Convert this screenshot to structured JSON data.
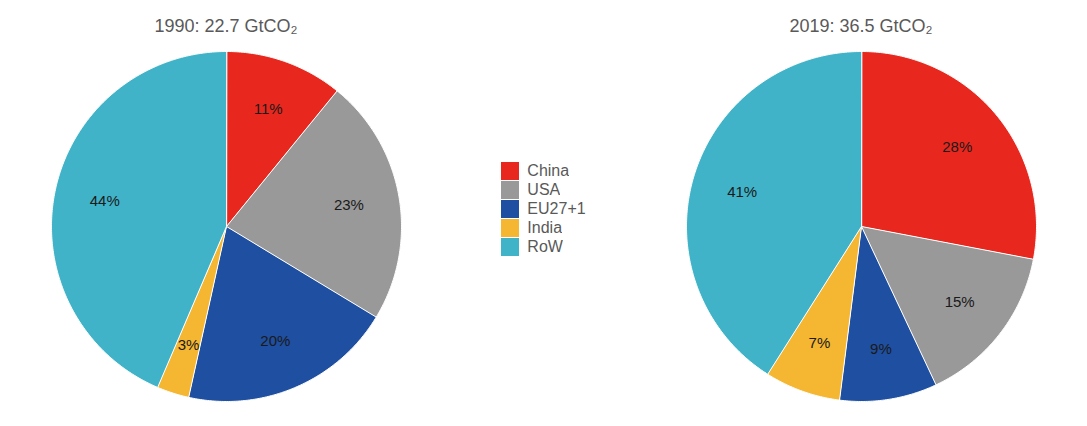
{
  "chart_data": [
    {
      "type": "pie",
      "title": "1990: 22.7 GtCO₂",
      "categories": [
        "China",
        "USA",
        "EU27+1",
        "India",
        "RoW"
      ],
      "values": [
        11,
        23,
        20,
        3,
        44
      ],
      "value_labels": [
        "11%",
        "23%",
        "20%",
        "3%",
        "44%"
      ],
      "colors": [
        "#e8281e",
        "#999999",
        "#1f4fa0",
        "#f5b731",
        "#41b3c8"
      ],
      "data_labels": true,
      "legend": "center"
    },
    {
      "type": "pie",
      "title": "2019: 36.5 GtCO₂",
      "categories": [
        "China",
        "USA",
        "EU27+1",
        "India",
        "RoW"
      ],
      "values": [
        28,
        15,
        9,
        7,
        41
      ],
      "value_labels": [
        "28%",
        "15%",
        "9%",
        "7%",
        "41%"
      ],
      "colors": [
        "#e8281e",
        "#999999",
        "#1f4fa0",
        "#f5b731",
        "#41b3c8"
      ],
      "data_labels": true
    }
  ]
}
